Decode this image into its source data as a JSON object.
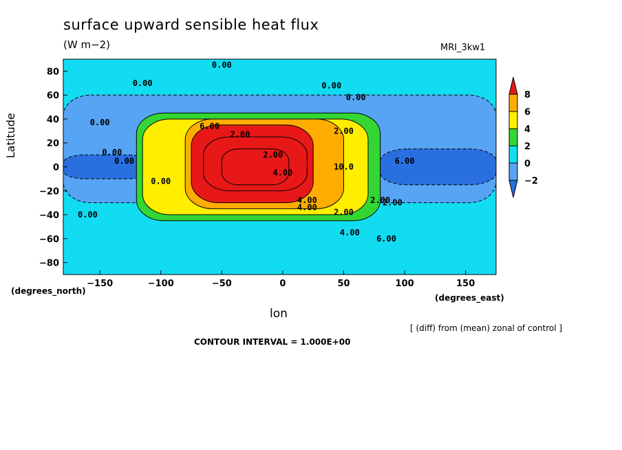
{
  "title": "surface upward sensible heat flux",
  "units": "(W m−2)",
  "model": "MRI_3kw1",
  "ylabel": "Latitude",
  "xlabel": "lon",
  "north_caption": "(degrees_north)",
  "east_caption": "(degrees_east)",
  "note": "[ (diff) from (mean) zonal of control ]",
  "contour_interval": "CONTOUR INTERVAL = 1.000E+00",
  "chart_data": {
    "type": "heatmap",
    "title": "surface upward sensible heat flux",
    "units": "W m-2",
    "xlabel": "lon",
    "ylabel": "Latitude",
    "xlim": [
      -180,
      175
    ],
    "ylim": [
      -90,
      90
    ],
    "x_ticks": [
      -150,
      -100,
      -50,
      0,
      50,
      100,
      150
    ],
    "y_ticks": [
      80,
      60,
      40,
      20,
      0,
      -20,
      -40,
      -60,
      -80
    ],
    "colorbar": {
      "levels": [
        -2,
        0,
        2,
        4,
        6,
        8
      ],
      "labels": [
        "8",
        "6",
        "4",
        "2",
        "0",
        "−2"
      ],
      "colors": [
        "#2a6fe0",
        "#58a4f4",
        "#12dcf2",
        "#33d633",
        "#ffee00",
        "#ffad00",
        "#e81818"
      ]
    },
    "contour_labels": [
      "0.00",
      "0.00",
      "0.00",
      "0.00",
      "0.00",
      "0.00",
      "0.00",
      "0.00",
      "0.00",
      "2.00",
      "2.00",
      "2.00",
      "2.00",
      "2.00",
      "4.00",
      "4.00",
      "4.00",
      "6.00",
      "10.0",
      "6.00",
      "2.00",
      "4.00",
      "6.00"
    ],
    "regions": [
      {
        "level": 0,
        "lon_range": [
          -180,
          175
        ],
        "lat_range": [
          -90,
          90
        ]
      },
      {
        "level": -1,
        "lon_range": [
          -180,
          175
        ],
        "lat_range": [
          -30,
          60
        ]
      },
      {
        "level": -2,
        "lon_range": [
          -180,
          -110
        ],
        "lat_range": [
          -10,
          10
        ]
      },
      {
        "level": -2,
        "lon_range": [
          80,
          175
        ],
        "lat_range": [
          -15,
          15
        ]
      },
      {
        "level": 1,
        "lon_range": [
          -120,
          80
        ],
        "lat_range": [
          -45,
          45
        ]
      },
      {
        "level": 2,
        "lon_range": [
          -115,
          70
        ],
        "lat_range": [
          -40,
          40
        ]
      },
      {
        "level": 3,
        "lon_range": [
          -80,
          50
        ],
        "lat_range": [
          -35,
          40
        ]
      },
      {
        "level": 4,
        "lon_range": [
          -75,
          25
        ],
        "lat_range": [
          -30,
          35
        ]
      },
      {
        "level": 5,
        "lon_range": [
          -65,
          20
        ],
        "lat_range": [
          -20,
          25
        ]
      },
      {
        "level": 6,
        "lon_range": [
          -50,
          5
        ],
        "lat_range": [
          -15,
          15
        ]
      }
    ]
  }
}
